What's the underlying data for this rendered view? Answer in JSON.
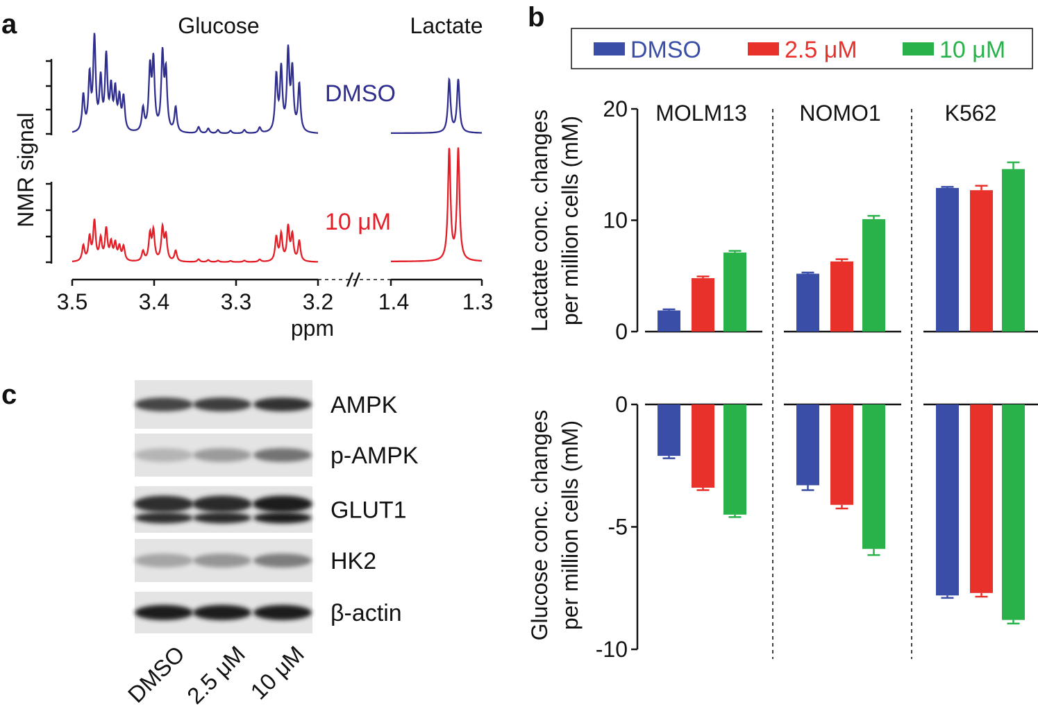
{
  "panels": {
    "a": "a",
    "b": "b",
    "c": "c"
  },
  "colors": {
    "dmso": "#3a4ea8",
    "c25": "#e8312a",
    "c10": "#2ab24a",
    "nmr_dmso": "#2f2e8f",
    "nmr_10": "#e31e26"
  },
  "nmr": {
    "glucose_title": "Glucose",
    "lactate_title": "Lactate",
    "ylabel": "NMR signal",
    "xlabel": "ppm",
    "dmso_label": "DMSO",
    "treated_label": "10 μM",
    "glucose_ticks": [
      "3.5",
      "3.4",
      "3.3",
      "3.2"
    ],
    "lactate_ticks": [
      "1.4",
      "1.3"
    ],
    "glucose_xrange": [
      3.5,
      3.2
    ],
    "lactate_xrange": [
      1.4,
      1.3
    ]
  },
  "legend": {
    "dmso": "DMSO",
    "c25": "2.5 μM",
    "c10": "10 μM"
  },
  "chart_data": [
    {
      "type": "bar",
      "title": "Lactate",
      "groups": [
        "MOLM13",
        "NOMO1",
        "K562"
      ],
      "ylabel": "Lactate conc. changes per million cells (mM)",
      "ylabel_line1": "Lactate conc. changes",
      "ylabel_line2": "per million cells (mM)",
      "ylim": [
        0,
        20
      ],
      "yticks": [
        "0",
        "10",
        "20"
      ],
      "series": [
        {
          "name": "DMSO",
          "values": [
            1.9,
            5.2,
            12.9
          ],
          "errors": [
            0.1,
            0.1,
            0.1
          ]
        },
        {
          "name": "2.5 μM",
          "values": [
            4.8,
            6.3,
            12.7
          ],
          "errors": [
            0.15,
            0.2,
            0.4
          ]
        },
        {
          "name": "10 μM",
          "values": [
            7.1,
            10.1,
            14.6
          ],
          "errors": [
            0.15,
            0.3,
            0.6
          ]
        }
      ]
    },
    {
      "type": "bar",
      "title": "Glucose",
      "groups": [
        "MOLM13",
        "NOMO1",
        "K562"
      ],
      "ylabel": "Glucose conc. changes per million cells (mM)",
      "ylabel_line1": "Glucose conc. changes",
      "ylabel_line2": "per million cells (mM)",
      "ylim": [
        -10,
        0
      ],
      "yticks": [
        "0",
        "-5",
        "-10"
      ],
      "series": [
        {
          "name": "DMSO",
          "values": [
            -2.1,
            -3.3,
            -7.8
          ],
          "errors": [
            0.1,
            0.2,
            0.1
          ]
        },
        {
          "name": "2.5 μM",
          "values": [
            -3.4,
            -4.1,
            -7.7
          ],
          "errors": [
            0.1,
            0.15,
            0.15
          ]
        },
        {
          "name": "10 μM",
          "values": [
            -4.5,
            -5.9,
            -8.8
          ],
          "errors": [
            0.1,
            0.25,
            0.15
          ]
        }
      ]
    }
  ],
  "western": {
    "proteins": [
      "AMPK",
      "p-AMPK",
      "GLUT1",
      "HK2",
      "β-actin"
    ],
    "lanes": [
      "DMSO",
      "2.5 μM",
      "10 μM"
    ],
    "band_intensity": [
      [
        0.78,
        0.82,
        0.88
      ],
      [
        0.22,
        0.35,
        0.55
      ],
      [
        0.9,
        0.92,
        0.97
      ],
      [
        0.3,
        0.38,
        0.5
      ],
      [
        0.97,
        0.97,
        0.97
      ]
    ]
  }
}
